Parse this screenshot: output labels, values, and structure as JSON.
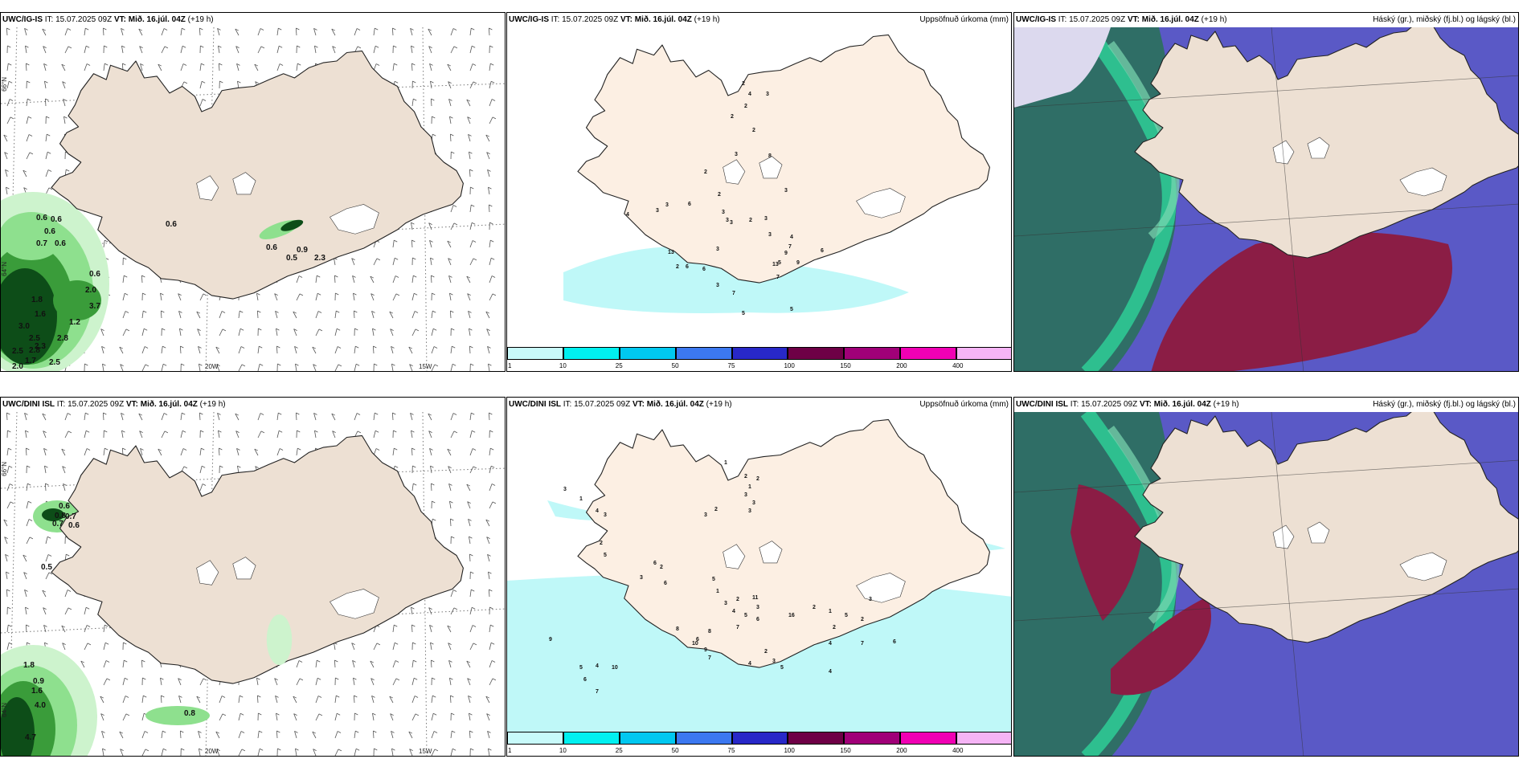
{
  "rows": [
    {
      "model": "UWC/IG-IS",
      "panels": {
        "wind": {
          "it": "IT: 15.07.2025 09Z",
          "vt_label": "VT:",
          "vt": "Mið. 16.júl. 04Z",
          "lead": "(+19 h)",
          "right_title": ""
        },
        "precip": {
          "it": "IT: 15.07.2025 09Z",
          "vt_label": "VT:",
          "vt": "Mið. 16.júl. 04Z",
          "lead": "(+19 h)",
          "right_title": "Uppsöfnuð úrkoma (mm)"
        },
        "cloud": {
          "it": "IT: 15.07.2025 09Z",
          "vt_label": "VT:",
          "vt": "Mið. 16.júl. 04Z",
          "lead": "(+19 h)",
          "right_title": "Háský (gr.), miðský (fj.bl.) og lágský (bl.)"
        }
      },
      "wind_values": [
        "0.6",
        "0.6",
        "0.6",
        "0.7",
        "0.6",
        "0.6",
        "0.6",
        "0.9",
        "0.5",
        "2.3",
        "0.6",
        "2.0",
        "1.8",
        "3.7",
        "1.6",
        "1.2",
        "3.0",
        "2.5",
        "2.3",
        "2.8",
        "2.5",
        "2.8",
        "1.7",
        "2.0",
        "2.5"
      ],
      "precip_values": [
        "2",
        "4",
        "3",
        "2",
        "2",
        "3",
        "2",
        "3",
        "2",
        "2",
        "8",
        "3",
        "6",
        "3",
        "3",
        "4",
        "3",
        "2",
        "3",
        "3",
        "3",
        "4",
        "7",
        "9",
        "9",
        "5",
        "13",
        "13",
        "2",
        "3",
        "6",
        "6",
        "6",
        "3",
        "7",
        "7",
        "5",
        "5"
      ]
    },
    {
      "model": "UWC/DINI ISL",
      "panels": {
        "wind": {
          "it": "IT: 15.07.2025 09Z",
          "vt_label": "VT:",
          "vt": "Mið. 16.júl. 04Z",
          "lead": "(+19 h)",
          "right_title": ""
        },
        "precip": {
          "it": "IT: 15.07.2025 09Z",
          "vt_label": "VT:",
          "vt": "Mið. 16.júl. 04Z",
          "lead": "(+19 h)",
          "right_title": "Uppsöfnuð úrkoma (mm)"
        },
        "cloud": {
          "it": "IT: 15.07.2025 09Z",
          "vt_label": "VT:",
          "vt": "Mið. 16.júl. 04Z",
          "lead": "(+19 h)",
          "right_title": "Háský (gr.), miðský (fj.bl.) og lágský (bl.)"
        }
      },
      "wind_values": [
        "0.6",
        "0.8",
        "0.7",
        "0.7",
        "0.6",
        "0.5",
        "1.8",
        "0.9",
        "1.6",
        "4.0",
        "4.7",
        "0.8"
      ],
      "precip_values": [
        "1",
        "2",
        "2",
        "1",
        "3",
        "3",
        "3",
        "2",
        "3",
        "3",
        "1",
        "4",
        "3",
        "2",
        "5",
        "6",
        "2",
        "3",
        "6",
        "5",
        "1",
        "2",
        "3",
        "4",
        "5",
        "6",
        "7",
        "8",
        "6",
        "8",
        "10",
        "9",
        "7",
        "10",
        "4",
        "5",
        "6",
        "7",
        "11",
        "3",
        "16",
        "2",
        "1",
        "2",
        "3",
        "2",
        "5",
        "7",
        "4",
        "6",
        "4",
        "2",
        "3",
        "5",
        "9",
        "4"
      ]
    }
  ],
  "axis_labels": {
    "lat_66": "66°N",
    "lat_64": "64°N",
    "lon_20": "20W",
    "lon_15": "15W"
  },
  "legend": {
    "ticks": [
      "1",
      "10",
      "25",
      "50",
      "75",
      "100",
      "150",
      "200",
      "400"
    ],
    "colors": [
      "#c8fafa",
      "#00f0f0",
      "#00c8f0",
      "#3c78f0",
      "#2828c8",
      "#6e0046",
      "#a00078",
      "#f000b4",
      "#f5b4f5"
    ]
  },
  "colors": {
    "land": "#ede0d3",
    "land_precip": "#fcefe3",
    "ice": "#ffffff",
    "green1": "#cdf3cd",
    "green2": "#8ee08e",
    "green3": "#3a9c3a",
    "green4": "#0d4d18",
    "cloud_blue": "#5a59c6",
    "cloud_red": "#8b1d45",
    "cloud_teal": "#2f6e66",
    "cloud_green": "#2ed39a",
    "precip_light": "#bff8f8"
  }
}
